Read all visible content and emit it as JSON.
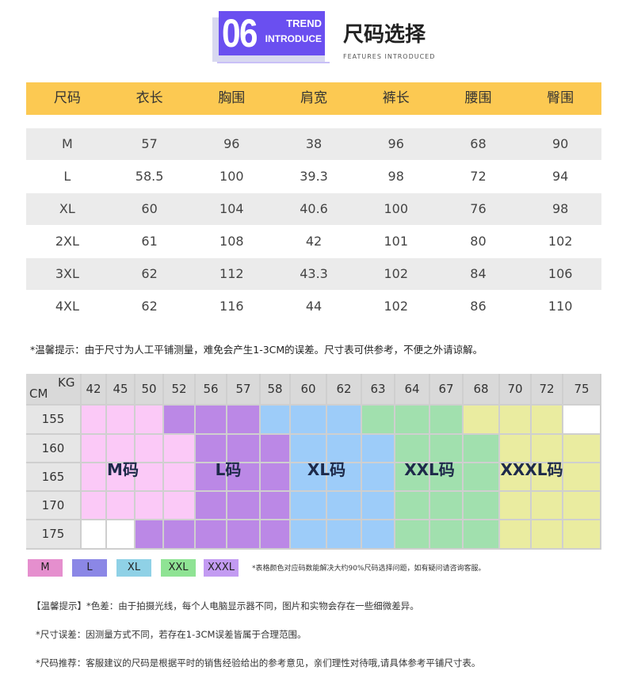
{
  "header": {
    "badge_number": "06",
    "badge_line1": "TREND",
    "badge_line2": "INTRODUCE",
    "title": "尺码选择",
    "subtitle": "FEATURES INTRODUCED"
  },
  "size_table": {
    "columns": [
      "尺码",
      "衣长",
      "胸围",
      "肩宽",
      "裤长",
      "腰围",
      "臀围"
    ],
    "rows": [
      [
        "M",
        "57",
        "96",
        "38",
        "96",
        "68",
        "90"
      ],
      [
        "L",
        "58.5",
        "100",
        "39.3",
        "98",
        "72",
        "94"
      ],
      [
        "XL",
        "60",
        "104",
        "40.6",
        "100",
        "76",
        "98"
      ],
      [
        "2XL",
        "61",
        "108",
        "42",
        "101",
        "80",
        "102"
      ],
      [
        "3XL",
        "62",
        "112",
        "43.3",
        "102",
        "84",
        "106"
      ],
      [
        "4XL",
        "62",
        "116",
        "44",
        "102",
        "86",
        "110"
      ]
    ]
  },
  "warm_tip": "*温馨提示：由于尺寸为人工平铺测量，难免会产生1-3CM的误差。尺寸表可供参考，不便之外请谅解。",
  "grid": {
    "corner_kg": "KG",
    "corner_cm": "CM",
    "kg_values": [
      "42",
      "45",
      "50",
      "52",
      "56",
      "57",
      "58",
      "60",
      "62",
      "63",
      "64",
      "67",
      "68",
      "70",
      "72",
      "75"
    ],
    "cm_values": [
      "155",
      "160",
      "165",
      "170",
      "175"
    ],
    "fill_map": [
      [
        "M",
        "M",
        "M",
        "L",
        "L",
        "L",
        "XL",
        "XL",
        "XL",
        "XXL",
        "XXL",
        "XXL",
        "XXXL",
        "XXXL",
        "XXXL",
        "none"
      ],
      [
        "M",
        "M",
        "M",
        "M",
        "L",
        "L",
        "L",
        "XL",
        "XL",
        "XL",
        "XXL",
        "XXL",
        "XXL",
        "XXXL",
        "XXXL",
        "XXXL"
      ],
      [
        "M",
        "M",
        "M",
        "M",
        "L",
        "L",
        "L",
        "XL",
        "XL",
        "XL",
        "XXL",
        "XXL",
        "XXL",
        "XXXL",
        "XXXL",
        "XXXL"
      ],
      [
        "M",
        "M",
        "M",
        "M",
        "L",
        "L",
        "L",
        "XL",
        "XL",
        "XL",
        "XXL",
        "XXL",
        "XXL",
        "XXXL",
        "XXXL",
        "XXXL"
      ],
      [
        "none",
        "none",
        "L",
        "L",
        "L",
        "L",
        "L",
        "XL",
        "XL",
        "XL",
        "XXL",
        "XXL",
        "XXL",
        "XXXL",
        "XXXL",
        "XXXL"
      ]
    ],
    "colors": {
      "M": "#fbc9f7",
      "L": "#bb88e6",
      "XL": "#9dccf9",
      "XXL": "#a1e0ae",
      "XXXL": "#eaeca0",
      "none": "#ffffff"
    },
    "zone_labels": [
      "M码",
      "L码",
      "XL码",
      "XXL码",
      "XXXL码"
    ]
  },
  "legend": {
    "items": [
      {
        "label": "M",
        "color": "#e58fce"
      },
      {
        "label": "L",
        "color": "#8b87e6"
      },
      {
        "label": "XL",
        "color": "#8fd1e6"
      },
      {
        "label": "XXL",
        "color": "#8fe394"
      },
      {
        "label": "XXXL",
        "color": "#c39bf2"
      }
    ],
    "note": "*表格颜色对应码数能解决大约90%尺码选择问题，如有疑问请咨询客服。"
  },
  "notes": [
    "【温馨提示】*色差：由于拍摄光线，每个人电脑显示器不同，图片和实物会存在一些细微差异。",
    "*尺寸误差：因测量方式不同，若存在1-3CM误差皆属于合理范围。",
    "*尺码推荐：客服建议的尺码是根据平时的销售经验给出的参考意见，亲们理性对待哦,请具体参考平铺尺寸表。"
  ]
}
